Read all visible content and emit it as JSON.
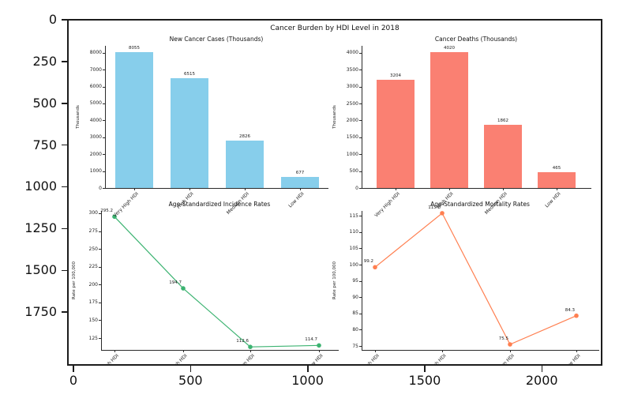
{
  "figure": {
    "suptitle": "Cancer Burden by HDI Level in 2018"
  },
  "outer_axes": {
    "y_ticks": [
      0,
      250,
      500,
      750,
      1000,
      1250,
      1500,
      1750
    ],
    "x_ticks": [
      0,
      500,
      1000,
      1500,
      2000
    ]
  },
  "chart_data": [
    {
      "type": "bar",
      "title": "New Cancer Cases (Thousands)",
      "ylabel": "Thousands",
      "categories": [
        "Very High HDI",
        "High HDI",
        "Medium HDI",
        "Low HDI"
      ],
      "values": [
        8055,
        6515,
        2826,
        677
      ],
      "value_labels": [
        "8055",
        "6515",
        "2826",
        "677"
      ],
      "yticks": [
        0,
        1000,
        2000,
        3000,
        4000,
        5000,
        6000,
        7000,
        8000
      ],
      "ylim": [
        0,
        8411
      ],
      "color": "#87CEEB",
      "grid": false,
      "legend": "none"
    },
    {
      "type": "bar",
      "title": "Cancer Deaths (Thousands)",
      "ylabel": "Thousands",
      "categories": [
        "Very High HDI",
        "High HDI",
        "Medium HDI",
        "Low HDI"
      ],
      "values": [
        3204,
        4020,
        1862,
        465
      ],
      "value_labels": [
        "3204",
        "4020",
        "1862",
        "465"
      ],
      "yticks": [
        0,
        500,
        1000,
        1500,
        2000,
        2500,
        3000,
        3500,
        4000
      ],
      "ylim": [
        0,
        4206
      ],
      "color": "#FA8072",
      "grid": false,
      "legend": "none"
    },
    {
      "type": "line",
      "title": "Age-Standardized Incidence Rates",
      "ylabel": "Rate per 100,000",
      "categories": [
        "Very High HDI",
        "High HDI",
        "Medium HDI",
        "Low HDI"
      ],
      "values": [
        295.2,
        194.7,
        112.6,
        114.7
      ],
      "value_labels": [
        "295.2",
        "194.7",
        "112.6",
        "114.7"
      ],
      "yticks": [
        125,
        150,
        175,
        200,
        225,
        250,
        275,
        300
      ],
      "ylim": [
        108.4,
        303.3
      ],
      "color": "#3CB371",
      "grid": false,
      "legend": "none"
    },
    {
      "type": "line",
      "title": "Age-Standardized Mortality Rates",
      "ylabel": "Rate per 100,000",
      "categories": [
        "Very High HDI",
        "High HDI",
        "Medium HDI",
        "Low HDI"
      ],
      "values": [
        99.2,
        115.8,
        75.5,
        84.3
      ],
      "value_labels": [
        "99.2",
        "115.8",
        "75.5",
        "84.3"
      ],
      "yticks": [
        75,
        80,
        85,
        90,
        95,
        100,
        105,
        110,
        115
      ],
      "ylim": [
        73.8,
        116.5
      ],
      "color": "#FF7F50",
      "grid": false,
      "legend": "none"
    }
  ]
}
